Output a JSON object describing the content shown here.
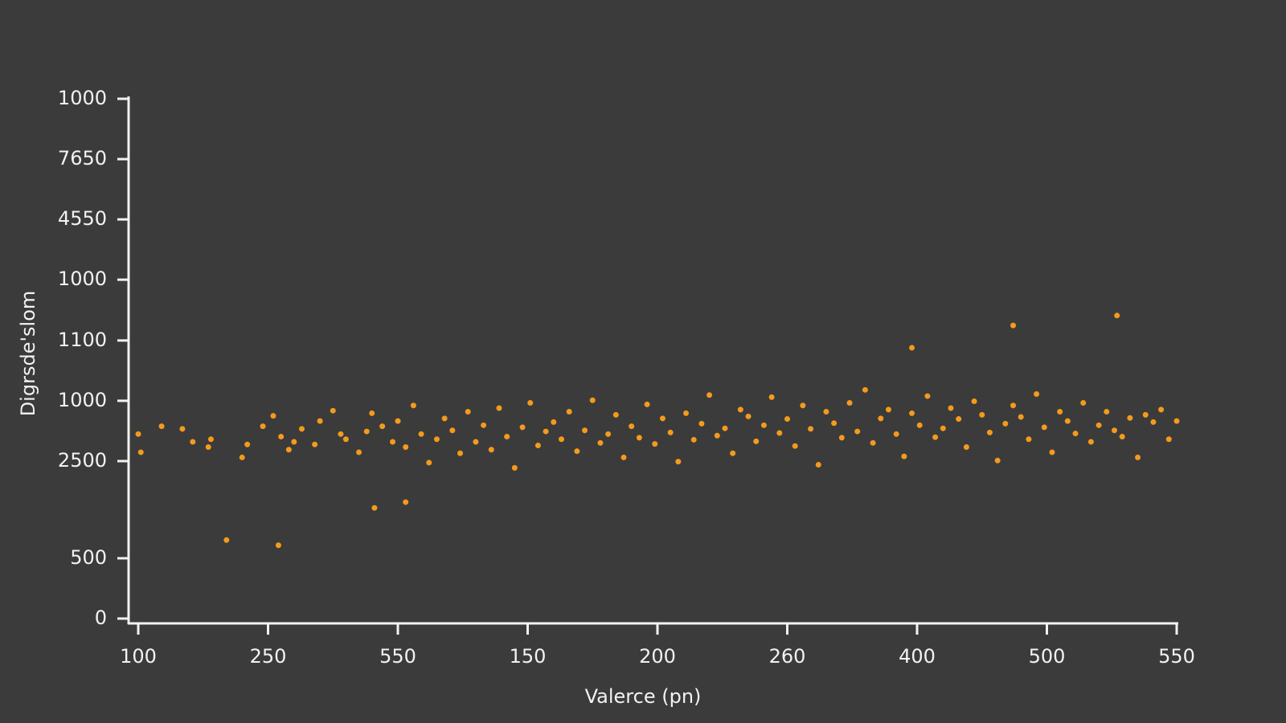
{
  "chart_data": {
    "type": "scatter",
    "xlabel": "Valerce (pn)",
    "ylabel": "Digrsde'slom",
    "color": "#f59a1c",
    "xlim": [
      100,
      500
    ],
    "xticks": [
      100,
      {
        "value": 150,
        "label": "250"
      },
      {
        "value": 200,
        "label": "550"
      },
      {
        "value": 250,
        "label": "150"
      },
      {
        "value": 300,
        "label": "200"
      },
      {
        "value": 350,
        "label": "260"
      },
      400,
      {
        "value": 450,
        "label": "500"
      },
      {
        "value": 500,
        "label": "550"
      }
    ],
    "ylim": [
      0,
      1000
    ],
    "yticks": [
      1000,
      {
        "value": 884,
        "label": "7650"
      },
      {
        "value": 768,
        "label": "4550"
      },
      {
        "value": 652,
        "label": "1000"
      },
      {
        "value": 535,
        "label": "1100"
      },
      {
        "value": 419,
        "label": "1000"
      },
      {
        "value": 303,
        "label": "2500"
      },
      {
        "value": 116,
        "label": "500"
      },
      0
    ],
    "x": [
      100,
      101,
      109,
      117,
      121,
      127,
      128,
      140,
      142,
      148,
      152,
      155,
      158,
      160,
      163,
      168,
      170,
      175,
      178,
      180,
      185,
      188,
      190,
      194,
      198,
      200,
      203,
      206,
      209,
      212,
      215,
      218,
      221,
      224,
      227,
      230,
      233,
      236,
      239,
      242,
      245,
      248,
      251,
      254,
      257,
      260,
      263,
      266,
      269,
      272,
      275,
      278,
      281,
      284,
      287,
      290,
      293,
      296,
      299,
      302,
      305,
      308,
      311,
      314,
      317,
      320,
      323,
      326,
      329,
      332,
      335,
      338,
      341,
      344,
      347,
      350,
      353,
      356,
      359,
      362,
      365,
      368,
      371,
      374,
      377,
      380,
      383,
      386,
      389,
      392,
      395,
      398,
      401,
      404,
      407,
      410,
      413,
      416,
      419,
      422,
      425,
      428,
      431,
      434,
      437,
      440,
      443,
      446,
      449,
      452,
      455,
      458,
      461,
      464,
      467,
      470,
      473,
      476,
      479,
      482,
      485,
      488,
      491,
      494,
      497,
      500,
      134,
      154,
      191,
      203,
      477,
      437,
      398
    ],
    "values": [
      355,
      320,
      370,
      365,
      340,
      330,
      345,
      310,
      335,
      370,
      390,
      350,
      325,
      340,
      365,
      335,
      380,
      400,
      355,
      345,
      320,
      360,
      395,
      370,
      340,
      380,
      330,
      410,
      355,
      300,
      345,
      385,
      362,
      318,
      398,
      340,
      372,
      325,
      405,
      350,
      290,
      368,
      415,
      333,
      360,
      378,
      345,
      398,
      322,
      362,
      420,
      338,
      355,
      392,
      310,
      370,
      348,
      412,
      336,
      385,
      358,
      302,
      395,
      344,
      375,
      430,
      352,
      366,
      318,
      402,
      389,
      341,
      372,
      426,
      357,
      384,
      332,
      410,
      365,
      296,
      398,
      376,
      348,
      415,
      360,
      440,
      338,
      385,
      402,
      355,
      312,
      395,
      372,
      428,
      349,
      366,
      405,
      384,
      330,
      418,
      392,
      358,
      304,
      375,
      410,
      388,
      345,
      432,
      368,
      320,
      398,
      380,
      356,
      415,
      340,
      372,
      398,
      362,
      350,
      386,
      310,
      392,
      378,
      402,
      345,
      380,
      151,
      141,
      213,
      224,
      583,
      564,
      521
    ]
  }
}
